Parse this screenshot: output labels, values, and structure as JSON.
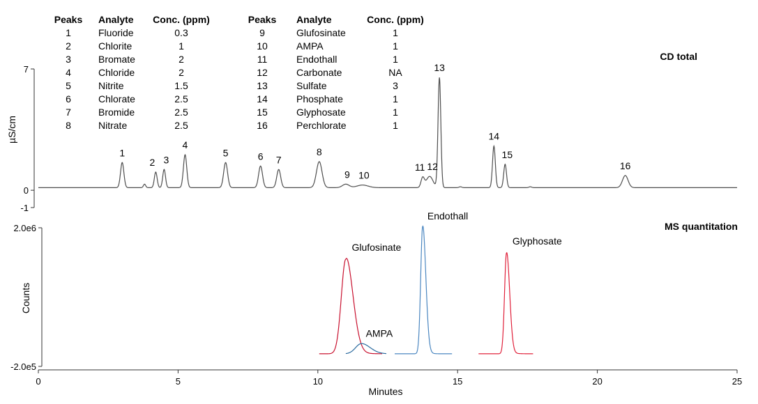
{
  "legend_table": {
    "headers": [
      "Peaks",
      "Analyte",
      "Conc. (ppm)"
    ],
    "rows": [
      [
        "1",
        "Fluoride",
        "0.3"
      ],
      [
        "2",
        "Chlorite",
        "1"
      ],
      [
        "3",
        "Bromate",
        "2"
      ],
      [
        "4",
        "Chloride",
        "2"
      ],
      [
        "5",
        "Nitrite",
        "1.5"
      ],
      [
        "6",
        "Chlorate",
        "2.5"
      ],
      [
        "7",
        "Bromide",
        "2.5"
      ],
      [
        "8",
        "Nitrate",
        "2.5"
      ],
      [
        "9",
        "Glufosinate",
        "1"
      ],
      [
        "10",
        "AMPA",
        "1"
      ],
      [
        "11",
        "Endothall",
        "1"
      ],
      [
        "12",
        "Carbonate",
        "NA"
      ],
      [
        "13",
        "Sulfate",
        "3"
      ],
      [
        "14",
        "Phosphate",
        "1"
      ],
      [
        "15",
        "Glyphosate",
        "1"
      ],
      [
        "16",
        "Perchlorate",
        "1"
      ]
    ]
  },
  "chart_data": [
    {
      "type": "line",
      "title": "CD total",
      "xlabel": "Minutes",
      "ylabel": "µS/cm",
      "xlim": [
        0,
        25
      ],
      "ylim": [
        -1,
        7
      ],
      "yticks": [
        "7",
        "0",
        "-1"
      ],
      "baseline": 0.15,
      "color": "#4d4d4d",
      "peaks": [
        {
          "label": "1",
          "x": 3.0,
          "height": 1.45,
          "width": 0.06
        },
        {
          "label": "2",
          "x": 4.2,
          "height": 0.9,
          "width": 0.05
        },
        {
          "label": "3",
          "x": 4.5,
          "height": 1.05,
          "width": 0.05
        },
        {
          "label": "4",
          "x": 5.25,
          "height": 1.9,
          "width": 0.06
        },
        {
          "label": "5",
          "x": 6.7,
          "height": 1.45,
          "width": 0.07
        },
        {
          "label": "6",
          "x": 7.95,
          "height": 1.25,
          "width": 0.07
        },
        {
          "label": "7",
          "x": 8.6,
          "height": 1.05,
          "width": 0.07
        },
        {
          "label": "8",
          "x": 10.05,
          "height": 1.5,
          "width": 0.1
        },
        {
          "label": "9",
          "x": 11.0,
          "height": 0.2,
          "width": 0.12
        },
        {
          "label": "10",
          "x": 11.6,
          "height": 0.15,
          "width": 0.2
        },
        {
          "label": "11",
          "x": 13.75,
          "height": 0.55,
          "width": 0.06
        },
        {
          "label": "12",
          "x": 14.0,
          "height": 0.65,
          "width": 0.12
        },
        {
          "label": "13",
          "x": 14.35,
          "height": 6.35,
          "width": 0.05
        },
        {
          "label": "14",
          "x": 16.3,
          "height": 2.4,
          "width": 0.05
        },
        {
          "label": "15",
          "x": 16.7,
          "height": 1.35,
          "width": 0.05
        },
        {
          "label": "16",
          "x": 21.0,
          "height": 0.7,
          "width": 0.1
        }
      ],
      "minor_peaks": [
        {
          "x": 3.8,
          "height": 0.2,
          "width": 0.04
        },
        {
          "x": 15.1,
          "height": 0.05,
          "width": 0.05
        },
        {
          "x": 17.6,
          "height": 0.05,
          "width": 0.05
        }
      ]
    },
    {
      "type": "line",
      "title": "MS quantitation",
      "xlabel": "Minutes",
      "ylabel": "Counts",
      "xlim": [
        0,
        25
      ],
      "ylim": [
        -200000,
        2000000
      ],
      "yticks": [
        "2.0e6",
        "-2.0e5"
      ],
      "xticks": [
        "0",
        "5",
        "10",
        "15",
        "20",
        "25"
      ],
      "series": [
        {
          "name": "Glufosinate",
          "color": "#c8102e",
          "x_range": [
            10.05,
            12.3
          ],
          "baseline": 0,
          "peak_x": 11.0,
          "peak_height": 1500000,
          "width": 0.16,
          "tail": 0.3
        },
        {
          "name": "AMPA",
          "color": "#2a6a9e",
          "x_range": [
            11.0,
            12.45
          ],
          "baseline": 0,
          "peak_x": 11.55,
          "peak_height": 160000,
          "width": 0.2,
          "tail": 0.25
        },
        {
          "name": "Endothall",
          "color": "#4a86c0",
          "x_range": [
            12.75,
            14.8
          ],
          "baseline": 0,
          "peak_x": 13.75,
          "peak_height": 2020000,
          "width": 0.07,
          "tail": 0.12
        },
        {
          "name": "Glyphosate",
          "color": "#e0203a",
          "x_range": [
            15.75,
            17.7
          ],
          "baseline": 0,
          "peak_x": 16.75,
          "peak_height": 1600000,
          "width": 0.07,
          "tail": 0.15
        }
      ]
    }
  ]
}
